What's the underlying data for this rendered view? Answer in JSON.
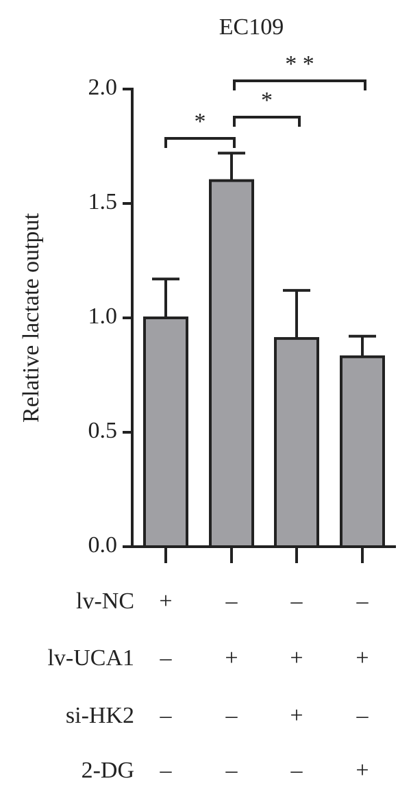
{
  "chart_data": {
    "type": "bar",
    "title": "EC109",
    "y_label": "Relative lactate output",
    "categories": [
      null,
      null,
      null,
      null
    ],
    "values": [
      1.0,
      1.6,
      0.91,
      0.83
    ],
    "errors": [
      0.17,
      0.12,
      0.21,
      0.09
    ],
    "color": "#a0a0a4",
    "ylim": [
      0,
      2.0
    ],
    "yticks": [
      {
        "value": 0,
        "label": "0.0"
      },
      0.5,
      {
        "value": 1.0,
        "label": "1.0"
      },
      1.5,
      {
        "value": 2.0,
        "label": "2.0"
      }
    ],
    "significance": [
      {
        "pair": [
          0,
          1
        ],
        "label": "*"
      },
      {
        "pair": [
          1,
          2
        ],
        "label": "*"
      },
      {
        "pair": [
          1,
          3
        ],
        "label": "* *"
      }
    ],
    "treatments": [
      {
        "name": "lv-NC",
        "signs": [
          "+",
          "–",
          "–",
          "–"
        ]
      },
      {
        "name": "lv-UCA1",
        "signs": [
          "–",
          "+",
          "+",
          "+"
        ]
      },
      {
        "name": "si-HK2",
        "signs": [
          "–",
          "–",
          "+",
          "–"
        ]
      },
      {
        "name": "2-DG",
        "signs": [
          "–",
          "–",
          "–",
          "+"
        ]
      }
    ]
  }
}
